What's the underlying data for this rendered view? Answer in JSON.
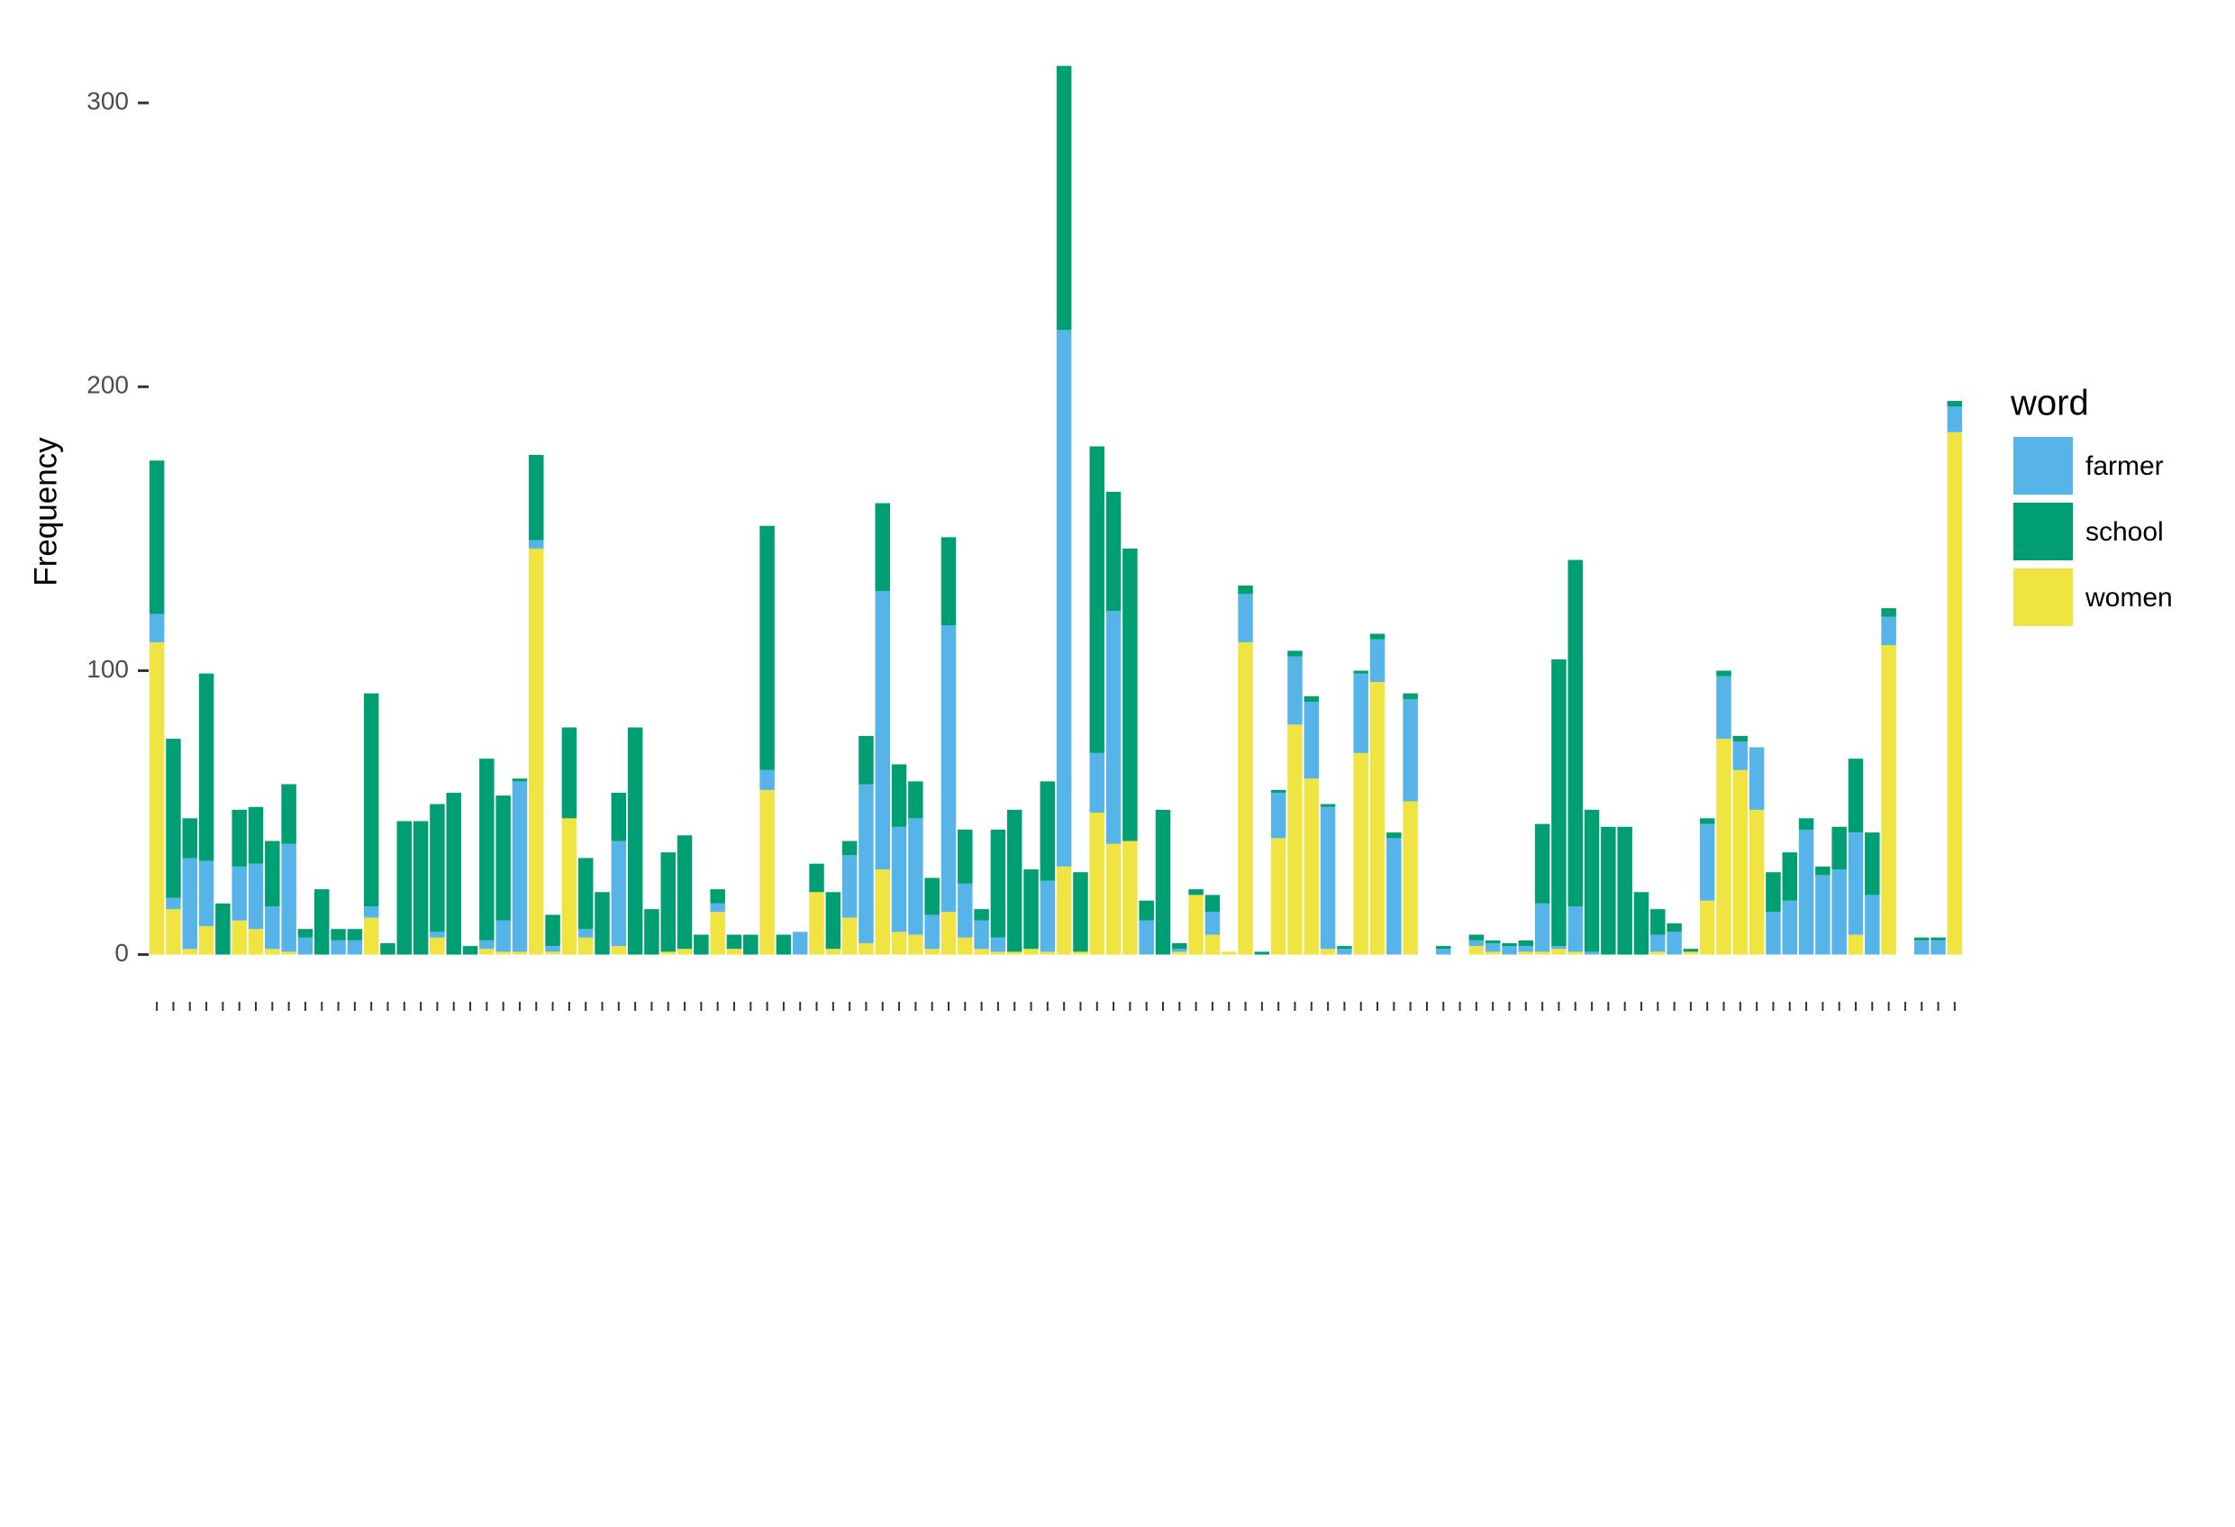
{
  "chart_data": {
    "type": "stacked_bar",
    "y_label": "Frequency",
    "legend_title": "word",
    "legend_position": "right",
    "grid": false,
    "categories": [
      null,
      null,
      null,
      null,
      null,
      null,
      null,
      null,
      null,
      null,
      null,
      null,
      null,
      null,
      null,
      null,
      null,
      null,
      null,
      null,
      null,
      null,
      null,
      null,
      null,
      null,
      null,
      null,
      null,
      null,
      null,
      null,
      null,
      null,
      null,
      null,
      null,
      null,
      null,
      null,
      null,
      null,
      null,
      null,
      null,
      null,
      null,
      null,
      null,
      null,
      null,
      null,
      null,
      null,
      null,
      null,
      null,
      null,
      null,
      null,
      null,
      null,
      null,
      null,
      null,
      null,
      null,
      null,
      null,
      null,
      null,
      null,
      null,
      null,
      null,
      null,
      null,
      null,
      null,
      null,
      null,
      null,
      null,
      null,
      null,
      null,
      null,
      null,
      null,
      null,
      null,
      null,
      null,
      null,
      null,
      null,
      null,
      null,
      null,
      null,
      null,
      null,
      null,
      null,
      null,
      null,
      null,
      null,
      null,
      null
    ],
    "ylim": [
      -16,
      321
    ],
    "yticks": [
      0,
      100,
      200,
      300
    ],
    "stack_order": [
      "women",
      "farmer",
      "school"
    ],
    "series": [
      {
        "name": "farmer",
        "color": "#56B4E9",
        "values": [
          10,
          4,
          32,
          23,
          0,
          19,
          23,
          15,
          38,
          6,
          0,
          5,
          5,
          4,
          0,
          0,
          0,
          2,
          0,
          0,
          3,
          11,
          60,
          3,
          2,
          0,
          3,
          0,
          37,
          0,
          0,
          0,
          0,
          0,
          3,
          0,
          0,
          7,
          0,
          8,
          0,
          0,
          22,
          56,
          98,
          37,
          41,
          12,
          101,
          19,
          10,
          5,
          0,
          0,
          25,
          189,
          0,
          21,
          82,
          0,
          12,
          0,
          1,
          0,
          8,
          0,
          17,
          0,
          16,
          24,
          27,
          50,
          2,
          28,
          15,
          41,
          36,
          0,
          2,
          0,
          2,
          3,
          3,
          2,
          17,
          1,
          16,
          1,
          0,
          0,
          0,
          6,
          8,
          0,
          27,
          22,
          10,
          22,
          15,
          19,
          44,
          28,
          30,
          36,
          21,
          10,
          0,
          5,
          5,
          9
        ]
      },
      {
        "name": "school",
        "color": "#009E73",
        "values": [
          54,
          56,
          14,
          66,
          18,
          20,
          20,
          23,
          21,
          3,
          23,
          4,
          4,
          75,
          4,
          47,
          47,
          45,
          57,
          3,
          64,
          44,
          1,
          30,
          11,
          32,
          25,
          22,
          17,
          80,
          16,
          35,
          40,
          7,
          5,
          5,
          7,
          86,
          7,
          0,
          10,
          20,
          5,
          17,
          31,
          22,
          13,
          13,
          31,
          19,
          4,
          38,
          50,
          28,
          35,
          93,
          28,
          108,
          42,
          103,
          7,
          51,
          2,
          2,
          6,
          0,
          3,
          1,
          1,
          2,
          2,
          1,
          1,
          1,
          2,
          2,
          2,
          0,
          1,
          0,
          2,
          1,
          1,
          2,
          28,
          101,
          122,
          50,
          45,
          45,
          22,
          9,
          3,
          1,
          2,
          2,
          2,
          0,
          14,
          17,
          4,
          3,
          15,
          26,
          22,
          3,
          0,
          1,
          1,
          2
        ]
      },
      {
        "name": "women",
        "color": "#F0E442",
        "values": [
          110,
          16,
          2,
          10,
          0,
          12,
          9,
          2,
          1,
          0,
          0,
          0,
          0,
          13,
          0,
          0,
          0,
          6,
          0,
          0,
          2,
          1,
          1,
          143,
          1,
          48,
          6,
          0,
          3,
          0,
          0,
          1,
          2,
          0,
          15,
          2,
          0,
          58,
          0,
          0,
          22,
          2,
          13,
          4,
          30,
          8,
          7,
          2,
          15,
          6,
          2,
          1,
          1,
          2,
          1,
          31,
          1,
          50,
          39,
          40,
          0,
          0,
          1,
          21,
          7,
          1,
          110,
          0,
          41,
          81,
          62,
          2,
          0,
          71,
          96,
          0,
          54,
          0,
          0,
          0,
          3,
          1,
          0,
          1,
          1,
          2,
          1,
          0,
          0,
          0,
          0,
          1,
          0,
          1,
          19,
          76,
          65,
          51,
          0,
          0,
          0,
          0,
          0,
          7,
          0,
          109,
          0,
          0,
          0,
          184
        ]
      }
    ]
  }
}
